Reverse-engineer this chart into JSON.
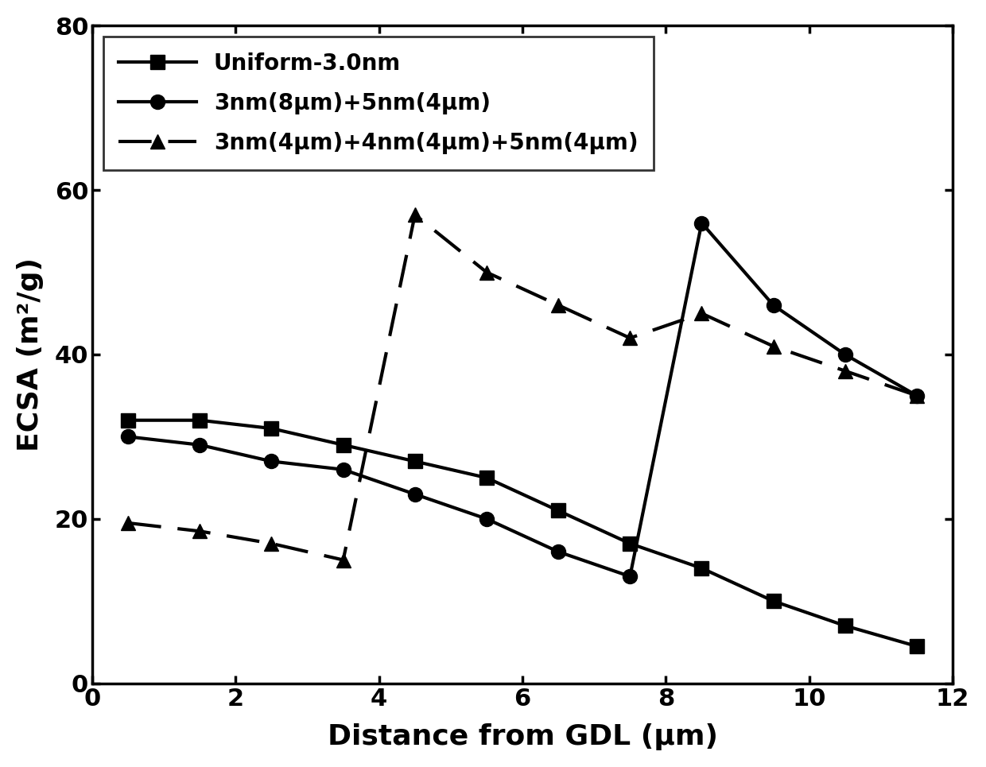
{
  "series1": {
    "label": "Uniform-3.0nm",
    "x": [
      0.5,
      1.5,
      2.5,
      3.5,
      4.5,
      5.5,
      6.5,
      7.5,
      8.5,
      9.5,
      10.5,
      11.5
    ],
    "y": [
      32,
      32,
      31,
      29,
      27,
      25,
      21,
      17,
      14,
      10,
      7,
      4.5
    ],
    "linestyle": "solid",
    "marker": "s",
    "color": "black"
  },
  "series2": {
    "label": "3nm(8μm)+5nm(4μm)",
    "x": [
      0.5,
      1.5,
      2.5,
      3.5,
      4.5,
      5.5,
      6.5,
      7.5,
      8.5,
      9.5,
      10.5,
      11.5
    ],
    "y": [
      30,
      29,
      27,
      26,
      23,
      20,
      16,
      13,
      56,
      46,
      40,
      35
    ],
    "linestyle": "solid",
    "marker": "o",
    "color": "black"
  },
  "series3": {
    "label": "3nm(4μm)+4nm(4μm)+5nm(4μm)",
    "x": [
      0.5,
      1.5,
      2.5,
      3.5,
      4.5,
      5.5,
      6.5,
      7.5,
      8.5,
      9.5,
      10.5,
      11.5
    ],
    "y": [
      19.5,
      18.5,
      17,
      15,
      57,
      50,
      46,
      42,
      45,
      41,
      38,
      35
    ],
    "linestyle": "dashed",
    "marker": "^",
    "color": "black"
  },
  "xlabel": "Distance from GDL (μm)",
  "ylabel": "ECSA (m²/g)",
  "xlim": [
    0,
    12
  ],
  "ylim": [
    0,
    80
  ],
  "xticks": [
    0,
    2,
    4,
    6,
    8,
    10,
    12
  ],
  "yticks": [
    0,
    20,
    40,
    60,
    80
  ],
  "legend_fontsize": 20,
  "axis_fontsize": 26,
  "tick_fontsize": 22,
  "linewidth": 3.0,
  "markersize": 13,
  "bg_color": "white"
}
